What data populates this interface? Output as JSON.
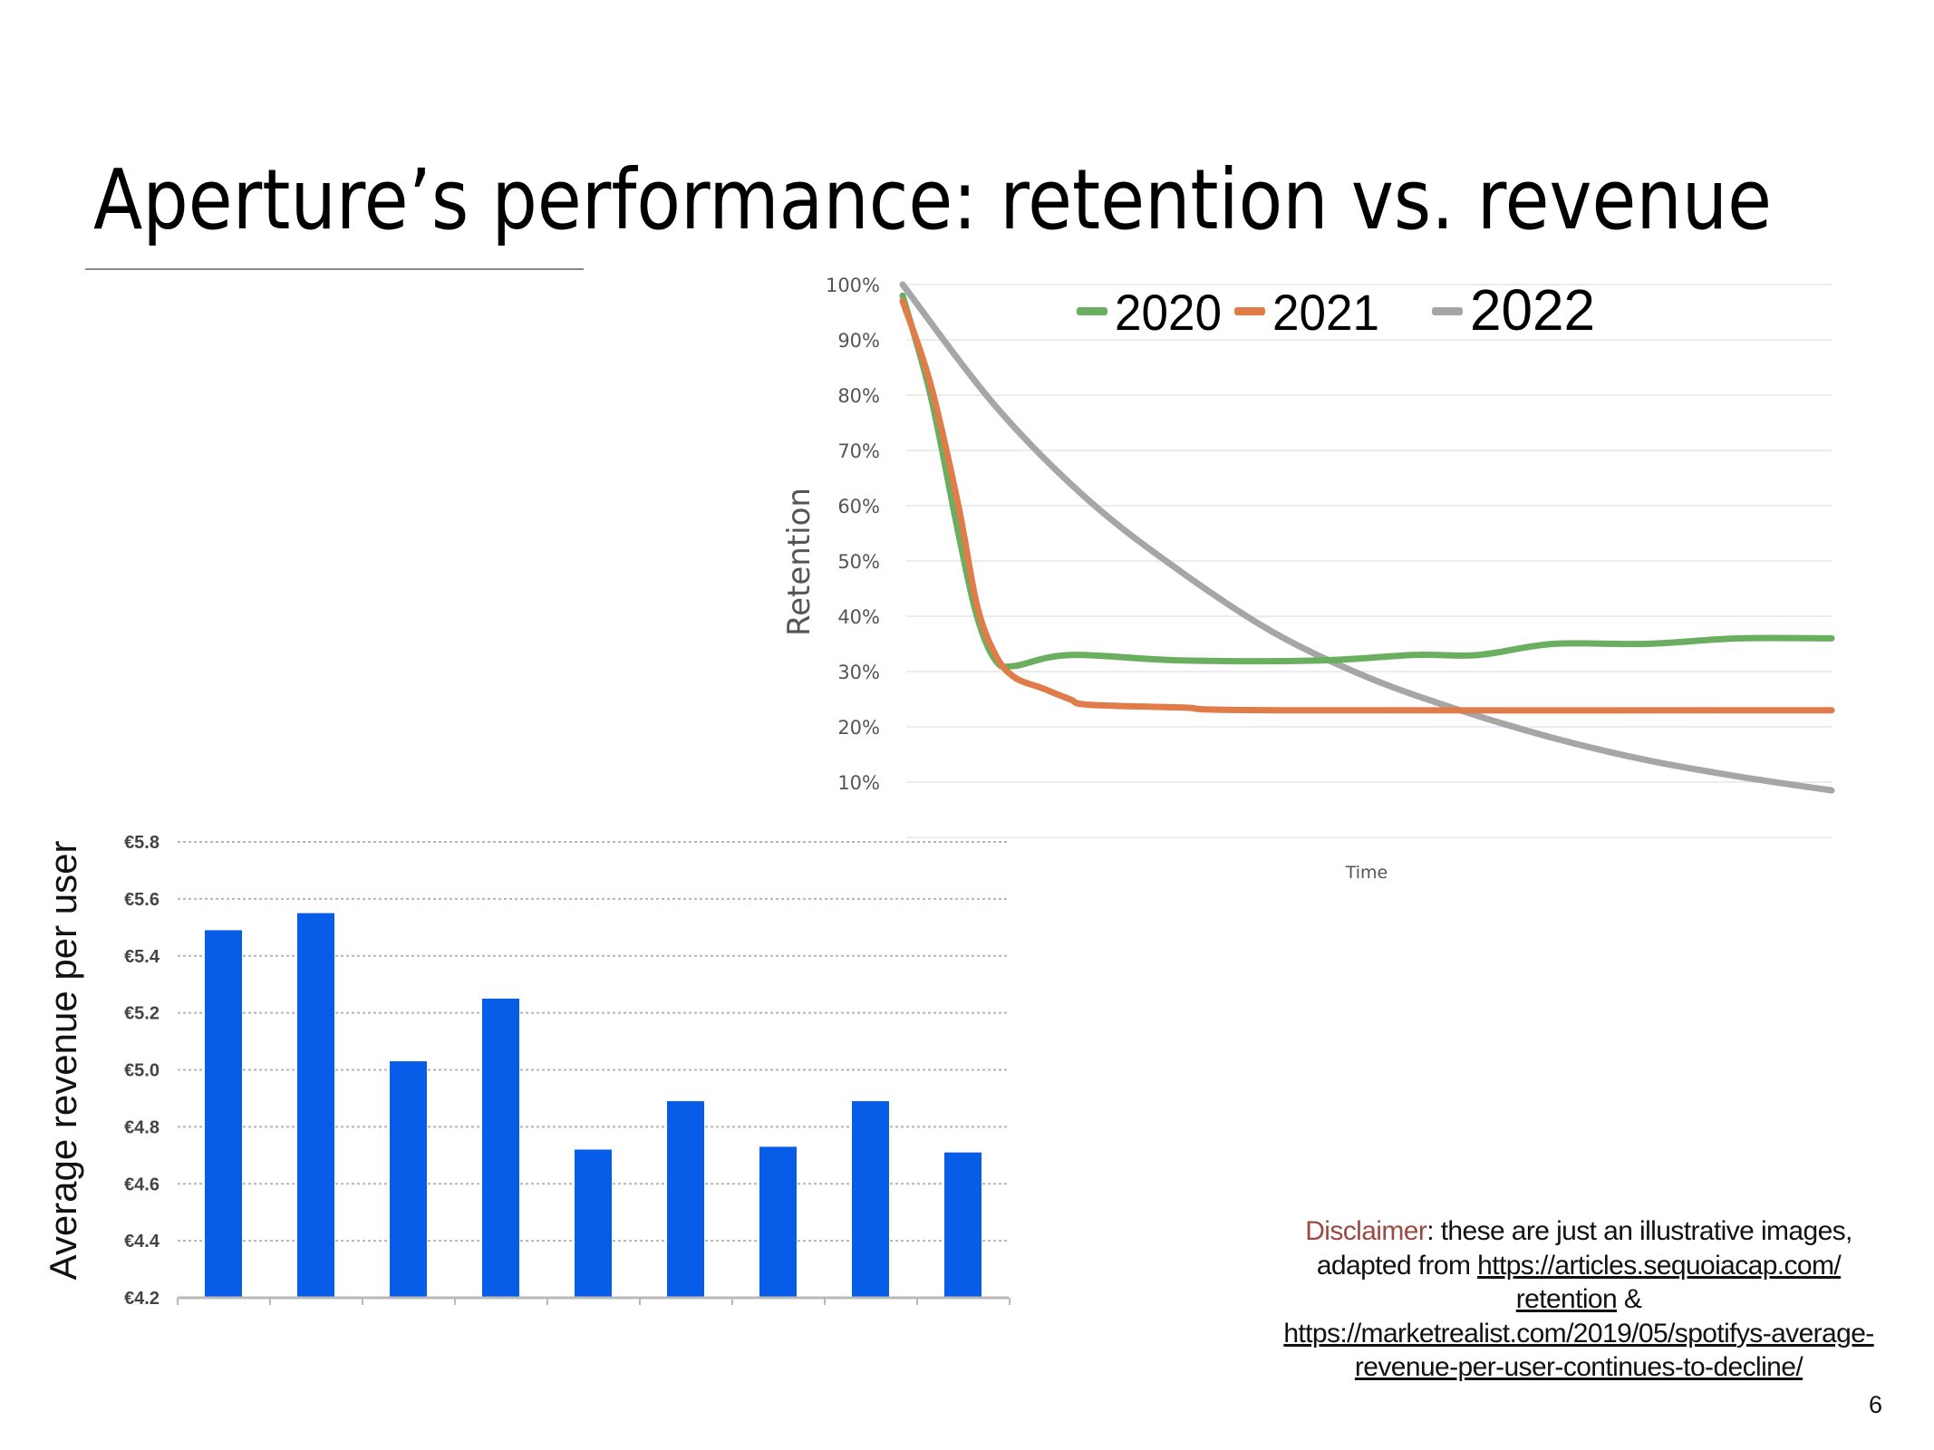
{
  "slide": {
    "title": "Aperture’s performance: retention vs. revenue",
    "page_number": "6"
  },
  "disclaimer": {
    "label": "Disclaimer",
    "text1": ": these are just an illustrative images,",
    "text2": "adapted from ",
    "link1_part1": "https://articles.sequoiacap.com/",
    "link1_part2": "retention",
    "text3": " &",
    "link2_part1": "https://marketrealist.com/2019/05/spotifys-average-",
    "link2_part2": "revenue-per-user-continues-to-decline/"
  },
  "colors": {
    "green": "#6aaf5f",
    "orange": "#e07b4a",
    "gray": "#a6a6a6",
    "bar": "#075ce8",
    "disclaimer": "#9a4a40"
  },
  "chart_data": [
    {
      "type": "line",
      "title": "",
      "xlabel": "Time",
      "ylabel": "Retention",
      "ylim": [
        0,
        100
      ],
      "yticks": [
        "10%",
        "20%",
        "30%",
        "40%",
        "50%",
        "60%",
        "70%",
        "80%",
        "90%",
        "100%"
      ],
      "legend_position": "top",
      "grid": true,
      "series": [
        {
          "name": "2020",
          "color": "#6aaf5f",
          "x": [
            0,
            3,
            6,
            8,
            10,
            12,
            18,
            30,
            45,
            55,
            62,
            70,
            80,
            90,
            100
          ],
          "y": [
            98,
            80,
            55,
            40,
            32,
            31,
            33,
            32,
            32,
            33,
            33,
            35,
            35,
            36,
            36
          ]
        },
        {
          "name": "2021",
          "color": "#e07b4a",
          "x": [
            0,
            3,
            6,
            8,
            10,
            12,
            15,
            18,
            20,
            30,
            40,
            100
          ],
          "y": [
            97,
            82,
            60,
            42,
            33,
            29,
            27,
            25,
            24,
            23.5,
            23,
            23
          ]
        },
        {
          "name": "2022",
          "color": "#a6a6a6",
          "x": [
            0,
            10,
            20,
            30,
            40,
            50,
            60,
            70,
            80,
            90,
            100
          ],
          "y": [
            100,
            78,
            61,
            48,
            37,
            29,
            23,
            18,
            14,
            11,
            8.5
          ]
        }
      ]
    },
    {
      "type": "bar",
      "title": "",
      "xlabel": "",
      "ylabel": "Average revenue per user",
      "ylim": [
        4.2,
        5.8
      ],
      "yticks": [
        "€4.2",
        "€4.4",
        "€4.6",
        "€4.8",
        "€5.0",
        "€5.2",
        "€5.4",
        "€5.6",
        "€5.8"
      ],
      "grid": true,
      "values": [
        5.49,
        5.55,
        5.03,
        5.25,
        4.72,
        4.89,
        4.73,
        4.89,
        4.71
      ]
    }
  ]
}
